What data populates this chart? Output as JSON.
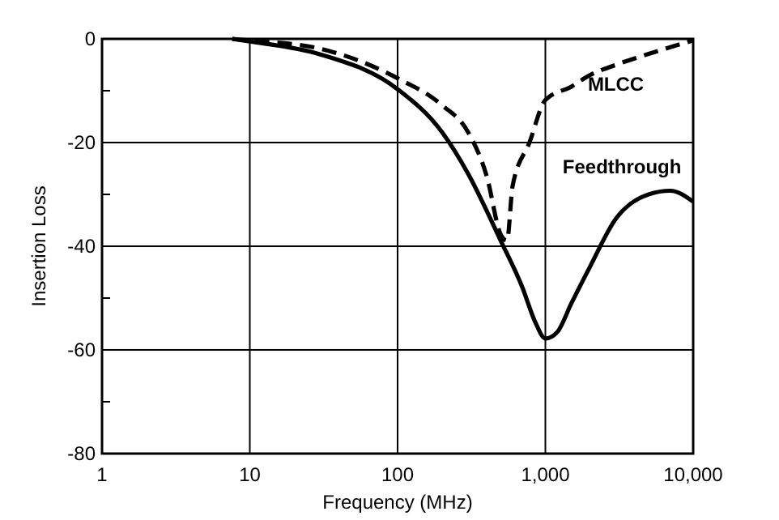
{
  "chart_data": {
    "type": "line",
    "xlabel": "Frequency (MHz)",
    "ylabel": "Insertion Loss",
    "log": "x",
    "grid": true,
    "xlim": [
      1,
      10000
    ],
    "xticks": [
      1,
      10,
      100,
      {
        "value": 1000,
        "label": "1,000"
      },
      {
        "value": 10000,
        "label": "10,000"
      }
    ],
    "ylim": [
      -80,
      0
    ],
    "yticks": [
      0,
      {
        "value": -10,
        "label": null
      },
      -20,
      {
        "value": -30,
        "label": null
      },
      -40,
      {
        "value": -50,
        "label": null
      },
      -60,
      {
        "value": -70,
        "label": null
      },
      -80
    ],
    "series": [
      {
        "name": "MLCC",
        "color": "#000000",
        "line_style": "dashed",
        "x": [
          7.6,
          10,
          30,
          100,
          200,
          300,
          400,
          500,
          550,
          600,
          780,
          1000,
          1500,
          2000,
          3000,
          5000,
          10000
        ],
        "values": [
          0,
          -0.3,
          -1.9,
          -7.6,
          -12.8,
          -18,
          -26.4,
          -37.8,
          -38.9,
          -28.4,
          -20,
          -11.8,
          -9.2,
          -7,
          -5,
          -2.9,
          -0.3
        ]
      },
      {
        "name": "Feedthrough",
        "color": "#000000",
        "line_style": "solid",
        "x": [
          7.6,
          10,
          30,
          100,
          200,
          300,
          500,
          700,
          850,
          1000,
          1200,
          1500,
          2000,
          3000,
          5000,
          7000,
          10000
        ],
        "values": [
          0,
          -0.5,
          -3,
          -9.7,
          -18,
          -26,
          -39,
          -48,
          -54.5,
          -57.8,
          -56.6,
          -51,
          -44,
          -34.7,
          -30,
          -29.3,
          -31.4
        ]
      }
    ]
  }
}
